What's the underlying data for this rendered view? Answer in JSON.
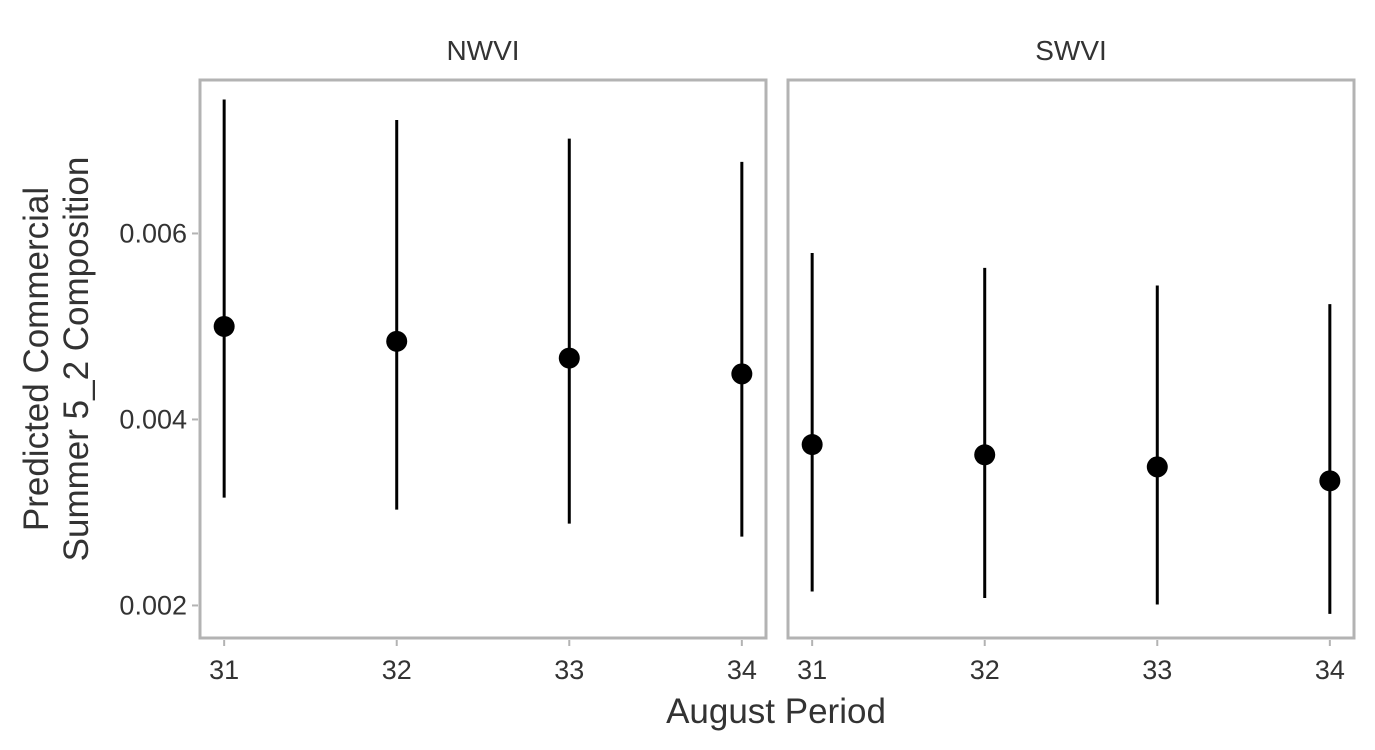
{
  "chart_data": {
    "type": "scatter",
    "subtype": "point-range (facetted)",
    "xlabel": "August Period",
    "ylabel_lines": [
      "Predicted Commercial",
      "Summer 5_2 Composition"
    ],
    "x_ticks": [
      "31",
      "32",
      "33",
      "34"
    ],
    "y_ticks": [
      "0.002",
      "0.004",
      "0.006"
    ],
    "ylim": [
      0.00165,
      0.00765
    ],
    "grid": false,
    "facets": [
      {
        "title": "NWVI",
        "points": [
          {
            "x": 31,
            "y": 0.005,
            "lower": 0.00316,
            "upper": 0.00744
          },
          {
            "x": 32,
            "y": 0.00484,
            "lower": 0.00303,
            "upper": 0.00722
          },
          {
            "x": 33,
            "y": 0.00466,
            "lower": 0.00288,
            "upper": 0.00702
          },
          {
            "x": 34,
            "y": 0.00449,
            "lower": 0.00274,
            "upper": 0.00677
          }
        ]
      },
      {
        "title": "SWVI",
        "points": [
          {
            "x": 31,
            "y": 0.00373,
            "lower": 0.00215,
            "upper": 0.00579
          },
          {
            "x": 32,
            "y": 0.00362,
            "lower": 0.00208,
            "upper": 0.00563
          },
          {
            "x": 33,
            "y": 0.00349,
            "lower": 0.00201,
            "upper": 0.00544
          },
          {
            "x": 34,
            "y": 0.00334,
            "lower": 0.00191,
            "upper": 0.00524
          }
        ]
      }
    ],
    "colors": {
      "points": "#000000",
      "panel_border": "#b3b3b3",
      "text": "#333333"
    }
  }
}
